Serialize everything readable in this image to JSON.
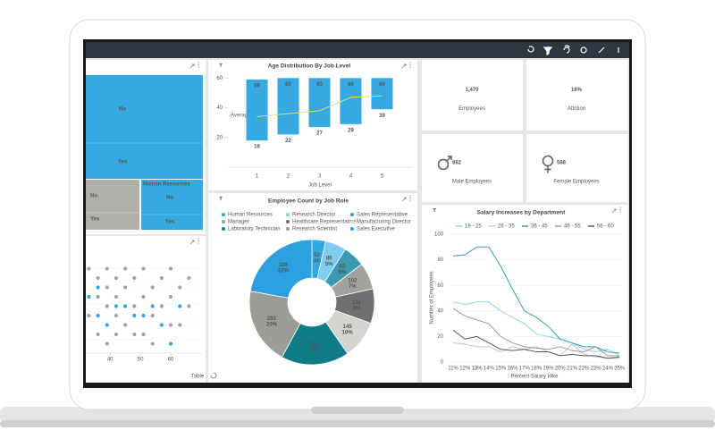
{
  "treemap": {
    "labels": [
      "No",
      "Yes",
      "No",
      "Yes",
      "Human Resources",
      "No",
      "Yes"
    ]
  },
  "scatter": {
    "type": "scatter",
    "xlim": [
      32,
      70
    ],
    "xticks": [
      40,
      50,
      60
    ],
    "ylim": [
      0,
      10
    ],
    "annotation": "Table",
    "series": [
      {
        "color": "#a3a39d",
        "x": [
          33,
          36,
          36,
          39,
          39,
          39,
          42,
          42,
          42,
          45,
          45,
          45,
          48,
          48,
          51,
          51,
          51,
          54,
          54,
          57,
          57,
          60,
          60,
          63,
          63,
          66,
          33,
          36,
          39,
          42,
          48,
          54,
          60,
          66
        ],
        "y": [
          9,
          8,
          6,
          9,
          7,
          5,
          8,
          6,
          4,
          9,
          7,
          3,
          8,
          5,
          9,
          6,
          2,
          7,
          4,
          8,
          5,
          9,
          6,
          7,
          3,
          8,
          4,
          2,
          1,
          2,
          2,
          1,
          3,
          5
        ]
      },
      {
        "color": "#2ea8e0",
        "x": [
          33,
          36,
          39,
          42,
          45,
          48,
          51,
          54,
          57,
          60,
          63,
          36
        ],
        "y": [
          6,
          4,
          3,
          5,
          5,
          4,
          4,
          5,
          3,
          1,
          5,
          7
        ]
      }
    ]
  },
  "age_chart": {
    "type": "range-bar",
    "title": "Age Distribution By Job Level",
    "x_label": "Job Level",
    "categories": [
      "1",
      "2",
      "3",
      "4",
      "5"
    ],
    "high": [
      59,
      60,
      60,
      60,
      60
    ],
    "low": [
      18,
      22,
      27,
      29,
      39
    ],
    "color": "#36a9e1",
    "ylim": [
      0,
      65
    ],
    "yticks": [
      20,
      40,
      60
    ],
    "line": {
      "name": "Average Age",
      "color": "#d9dc8e",
      "values": [
        34,
        36,
        38,
        47,
        48
      ]
    }
  },
  "role_chart": {
    "type": "donut",
    "title": "Employee Count by Job Role",
    "categories": [
      "Human Resources",
      "Research Director",
      "Sales Representative",
      "Manager",
      "Healthcare Representative",
      "Manufacturing Director",
      "Laboratory Technician",
      "Research Scientist",
      "Sales Executive"
    ],
    "values": [
      52,
      80,
      83,
      102,
      131,
      145,
      259,
      292,
      326
    ],
    "percent_labels": [
      "4%",
      "5%",
      "6%",
      "7%",
      "9%",
      "10%",
      "18%",
      "20%",
      "22%"
    ],
    "colors": [
      "#2ea8e0",
      "#7fcdee",
      "#3a9bb0",
      "#a3a39d",
      "#707070",
      "#d4d4d0",
      "#0e7b86",
      "#9b9d96",
      "#2b9fe0"
    ]
  },
  "kpis": [
    {
      "value": "1,470",
      "label": "Employees"
    },
    {
      "value": "16%",
      "label": "Attrition"
    },
    {
      "value": "882",
      "label": "Male Employees",
      "icon": "male"
    },
    {
      "value": "588",
      "label": "Female Employees",
      "icon": "female"
    }
  ],
  "salary_chart": {
    "type": "line",
    "title": "Salary Increases by Department",
    "x_label": "Percent Salary Hike",
    "y_label": "Number of Employees",
    "categories": [
      "11%",
      "12%",
      "13%",
      "14%",
      "15%",
      "16%",
      "17%",
      "18%",
      "19%",
      "20%",
      "21%",
      "22%",
      "23%",
      "24%",
      "25%"
    ],
    "ylim": [
      0,
      100
    ],
    "yticks": [
      0,
      20,
      40,
      60,
      80,
      100
    ],
    "series": [
      {
        "name": "16 - 25",
        "color": "#8fd3f0",
        "values": [
          47,
          45,
          47,
          47,
          40,
          35,
          30,
          22,
          20,
          18,
          15,
          10,
          8,
          10,
          5
        ]
      },
      {
        "name": "26 - 35",
        "color": "#c5c5c0",
        "values": [
          15,
          14,
          12,
          12,
          8,
          12,
          10,
          12,
          8,
          5,
          14,
          6,
          4,
          3,
          3
        ]
      },
      {
        "name": "36 - 45",
        "color": "#3a9bb0",
        "values": [
          83,
          84,
          90,
          90,
          75,
          57,
          40,
          35,
          28,
          18,
          15,
          12,
          12,
          8,
          7
        ]
      },
      {
        "name": "46 - 55",
        "color": "#9b9d96",
        "values": [
          42,
          36,
          33,
          30,
          20,
          15,
          12,
          11,
          10,
          12,
          9,
          8,
          12,
          5,
          5
        ]
      },
      {
        "name": "56 - 60",
        "color": "#555555",
        "values": [
          25,
          18,
          20,
          15,
          10,
          9,
          10,
          8,
          8,
          5,
          6,
          5,
          5,
          3,
          4
        ]
      }
    ]
  }
}
